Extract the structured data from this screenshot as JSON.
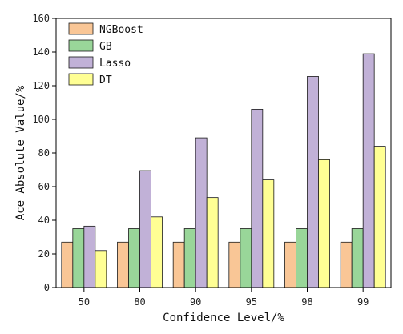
{
  "chart_data": {
    "type": "bar",
    "xlabel": "Confidence Level/%",
    "ylabel": "Ace Absolute Value/%",
    "categories": [
      "50",
      "80",
      "90",
      "95",
      "98",
      "99"
    ],
    "ylim": [
      0,
      160
    ],
    "yticks": [
      0,
      20,
      40,
      60,
      80,
      100,
      120,
      140,
      160
    ],
    "legend_position": "top-left",
    "grid": false,
    "series": [
      {
        "name": "NGBoost",
        "color": "#F9C696",
        "values": [
          27,
          27,
          27,
          27,
          27,
          27
        ]
      },
      {
        "name": "GB",
        "color": "#99D699",
        "values": [
          35,
          35,
          35,
          35,
          35,
          35
        ]
      },
      {
        "name": "Lasso",
        "color": "#C1B1D7",
        "values": [
          36.5,
          69.5,
          89,
          106,
          125.5,
          139
        ]
      },
      {
        "name": "DT",
        "color": "#FFFF94",
        "values": [
          22,
          42,
          53.5,
          64,
          76,
          84
        ]
      }
    ]
  }
}
